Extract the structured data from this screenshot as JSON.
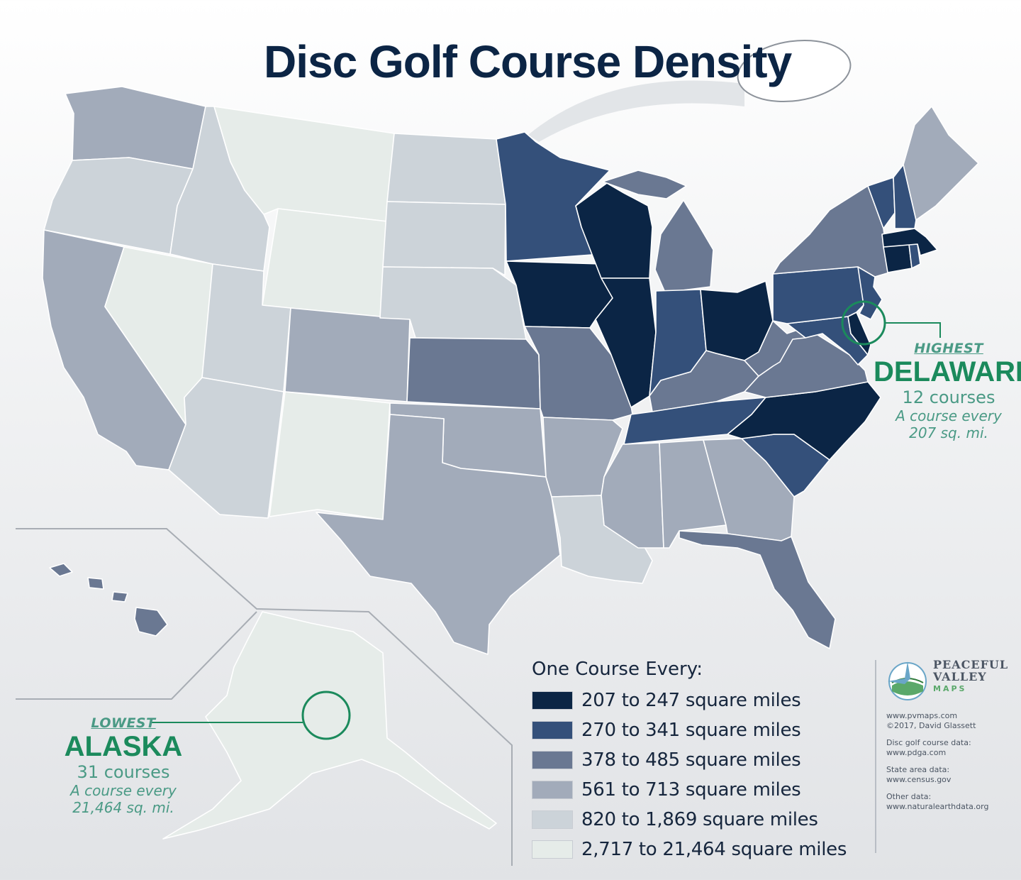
{
  "title": "Disc Golf Course Density",
  "legend": {
    "title": "One Course Every:",
    "items": [
      {
        "label": "207 to 247 square miles",
        "color": "#0b2545"
      },
      {
        "label": "270 to 341 square miles",
        "color": "#34507a"
      },
      {
        "label": "378 to 485 square miles",
        "color": "#6a7892"
      },
      {
        "label": "561 to 713 square miles",
        "color": "#a2abba"
      },
      {
        "label": "820 to 1,869 square miles",
        "color": "#ccd3d9"
      },
      {
        "label": "2,717 to 21,464 square miles",
        "color": "#e6ece9"
      }
    ]
  },
  "callouts": {
    "highest": {
      "tag": "HIGHEST",
      "state": "DELAWARE",
      "courses": "12 courses",
      "rate_line1": "A course every",
      "rate_line2": "207 sq. mi."
    },
    "lowest": {
      "tag": "LOWEST",
      "state": "ALASKA",
      "courses": "31 courses",
      "rate_line1": "A course every",
      "rate_line2": "21,464 sq. mi."
    }
  },
  "brand": {
    "line1": "PEACEFUL",
    "line2": "VALLEY",
    "line3": "MAPS"
  },
  "attribution": {
    "site": "www.pvmaps.com",
    "copyright": "©2017, David Glassett",
    "course_label": "Disc golf course data:",
    "course_src": "www.pdga.com",
    "area_label": "State area data:",
    "area_src": "www.census.gov",
    "other_label": "Other data:",
    "other_src": "www.naturalearthdata.org"
  },
  "states": [
    {
      "name": "Washington",
      "tier": 4
    },
    {
      "name": "Oregon",
      "tier": 5
    },
    {
      "name": "California",
      "tier": 4
    },
    {
      "name": "Nevada",
      "tier": 6
    },
    {
      "name": "Idaho",
      "tier": 5
    },
    {
      "name": "Montana",
      "tier": 6
    },
    {
      "name": "Wyoming",
      "tier": 6
    },
    {
      "name": "Utah",
      "tier": 5
    },
    {
      "name": "Arizona",
      "tier": 5
    },
    {
      "name": "Colorado",
      "tier": 4
    },
    {
      "name": "New Mexico",
      "tier": 6
    },
    {
      "name": "North Dakota",
      "tier": 5
    },
    {
      "name": "South Dakota",
      "tier": 5
    },
    {
      "name": "Nebraska",
      "tier": 5
    },
    {
      "name": "Kansas",
      "tier": 3
    },
    {
      "name": "Oklahoma",
      "tier": 4
    },
    {
      "name": "Texas",
      "tier": 4
    },
    {
      "name": "Minnesota",
      "tier": 2
    },
    {
      "name": "Iowa",
      "tier": 1
    },
    {
      "name": "Missouri",
      "tier": 3
    },
    {
      "name": "Arkansas",
      "tier": 4
    },
    {
      "name": "Louisiana",
      "tier": 5
    },
    {
      "name": "Wisconsin",
      "tier": 1
    },
    {
      "name": "Illinois",
      "tier": 1
    },
    {
      "name": "Michigan",
      "tier": 3
    },
    {
      "name": "Indiana",
      "tier": 2
    },
    {
      "name": "Ohio",
      "tier": 1
    },
    {
      "name": "Kentucky",
      "tier": 3
    },
    {
      "name": "Tennessee",
      "tier": 2
    },
    {
      "name": "Mississippi",
      "tier": 4
    },
    {
      "name": "Alabama",
      "tier": 4
    },
    {
      "name": "Georgia",
      "tier": 4
    },
    {
      "name": "Florida",
      "tier": 3
    },
    {
      "name": "South Carolina",
      "tier": 2
    },
    {
      "name": "North Carolina",
      "tier": 1
    },
    {
      "name": "Virginia",
      "tier": 3
    },
    {
      "name": "West Virginia",
      "tier": 3
    },
    {
      "name": "Maryland",
      "tier": 2
    },
    {
      "name": "Delaware",
      "tier": 1
    },
    {
      "name": "Pennsylvania",
      "tier": 2
    },
    {
      "name": "New Jersey",
      "tier": 2
    },
    {
      "name": "New York",
      "tier": 3
    },
    {
      "name": "Connecticut",
      "tier": 1
    },
    {
      "name": "Rhode Island",
      "tier": 2
    },
    {
      "name": "Massachusetts",
      "tier": 1
    },
    {
      "name": "Vermont",
      "tier": 2
    },
    {
      "name": "New Hampshire",
      "tier": 2
    },
    {
      "name": "Maine",
      "tier": 4
    },
    {
      "name": "Alaska",
      "tier": 6
    },
    {
      "name": "Hawaii",
      "tier": 3
    }
  ]
}
